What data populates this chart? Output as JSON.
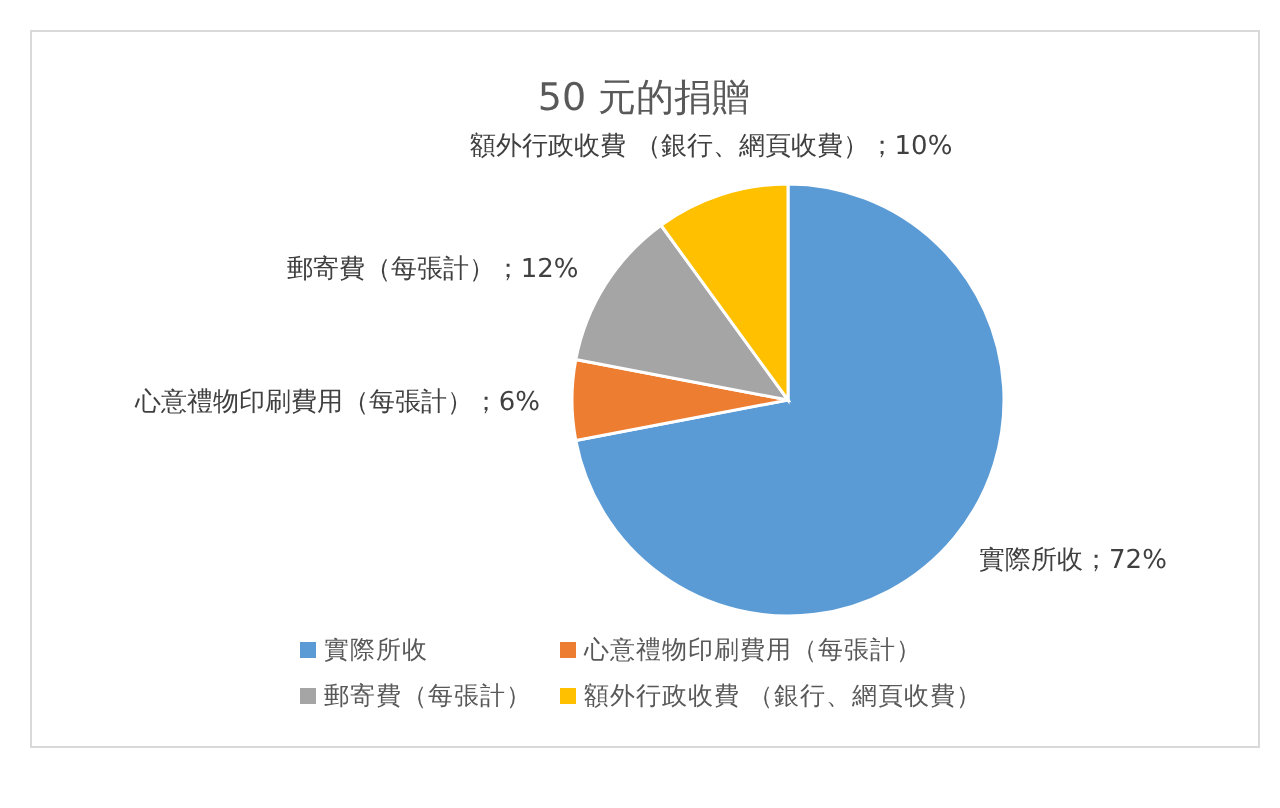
{
  "chart_data": {
    "type": "pie",
    "title": "50 元的捐贈",
    "categories": [
      "實際所收",
      "心意禮物印刷費用（每張計）",
      "郵寄費（每張計）",
      "額外行政收費 （銀行、網頁收費）"
    ],
    "values": [
      72,
      6,
      12,
      10
    ],
    "colors": [
      "#5b9bd5",
      "#ed7d31",
      "#a5a5a5",
      "#ffc000"
    ],
    "value_labels": [
      "實際所收；72%",
      "心意禮物印刷費用（每張計）；6%",
      "郵寄費（每張計）；12%",
      "額外行政收費 （銀行、網頁收費）；10%"
    ],
    "legend": "bottom"
  }
}
